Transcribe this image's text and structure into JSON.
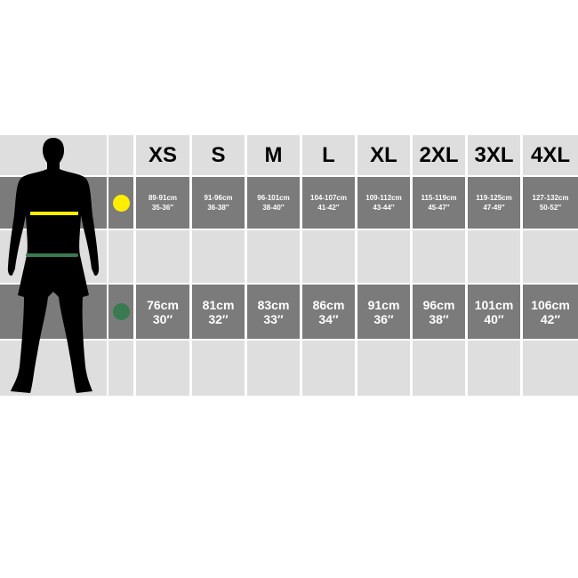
{
  "sizes": [
    "XS",
    "S",
    "M",
    "L",
    "XL",
    "2XL",
    "3XL",
    "4XL"
  ],
  "chest": {
    "indicator_color": "#ffee00",
    "values": [
      {
        "cm": "89-91cm",
        "in": "35-36″"
      },
      {
        "cm": "91-96cm",
        "in": "36-38″"
      },
      {
        "cm": "96-101cm",
        "in": "38-40″"
      },
      {
        "cm": "104-107cm",
        "in": "41-42″"
      },
      {
        "cm": "109-112cm",
        "in": "43-44″"
      },
      {
        "cm": "115-119cm",
        "in": "45-47″"
      },
      {
        "cm": "119-125cm",
        "in": "47-49″"
      },
      {
        "cm": "127-132cm",
        "in": "50-52″"
      }
    ]
  },
  "waist": {
    "indicator_color": "#3a7a50",
    "values": [
      {
        "cm": "76cm",
        "in": "30″"
      },
      {
        "cm": "81cm",
        "in": "32″"
      },
      {
        "cm": "83cm",
        "in": "33″"
      },
      {
        "cm": "86cm",
        "in": "34″"
      },
      {
        "cm": "91cm",
        "in": "36″"
      },
      {
        "cm": "96cm",
        "in": "38″"
      },
      {
        "cm": "101cm",
        "in": "40″"
      },
      {
        "cm": "106cm",
        "in": "42″"
      }
    ]
  }
}
